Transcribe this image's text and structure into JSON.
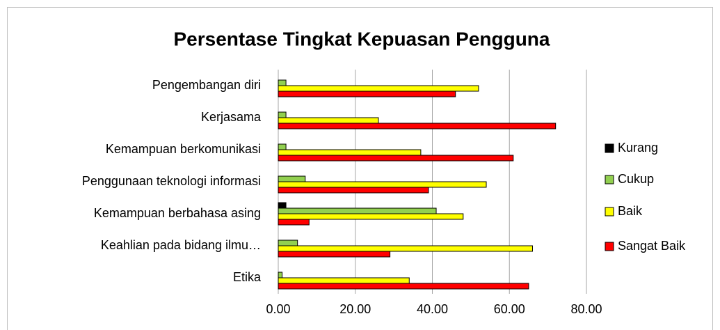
{
  "chart_data": {
    "type": "hbar",
    "title": "Persentase Tingkat Kepuasan Pengguna",
    "categories": [
      "Pengembangan diri",
      "Kerjasama",
      "Kemampuan berkomunikasi",
      "Penggunaan teknologi informasi",
      "Kemampuan berbahasa asing",
      "Keahlian pada bidang ilmu…",
      "Etika"
    ],
    "series": [
      {
        "name": "Kurang",
        "color": "#000000",
        "values": [
          0,
          0,
          0,
          0,
          2,
          0,
          0
        ]
      },
      {
        "name": "Cukup",
        "color": "#92d050",
        "values": [
          2,
          2,
          2,
          7,
          41,
          5,
          1
        ]
      },
      {
        "name": "Baik",
        "color": "#ffff00",
        "values": [
          52,
          26,
          37,
          54,
          48,
          66,
          34
        ]
      },
      {
        "name": "Sangat Baik",
        "color": "#ff0000",
        "values": [
          46,
          72,
          61,
          39,
          8,
          29,
          65
        ]
      }
    ],
    "xlim": [
      0,
      80
    ],
    "xticks": [
      {
        "value": 0,
        "label": "0.00"
      },
      {
        "value": 20,
        "label": "20.00"
      },
      {
        "value": 40,
        "label": "40.00"
      },
      {
        "value": 60,
        "label": "60.00"
      },
      {
        "value": 80,
        "label": "80.00"
      }
    ],
    "grid": true,
    "legend": "right"
  }
}
